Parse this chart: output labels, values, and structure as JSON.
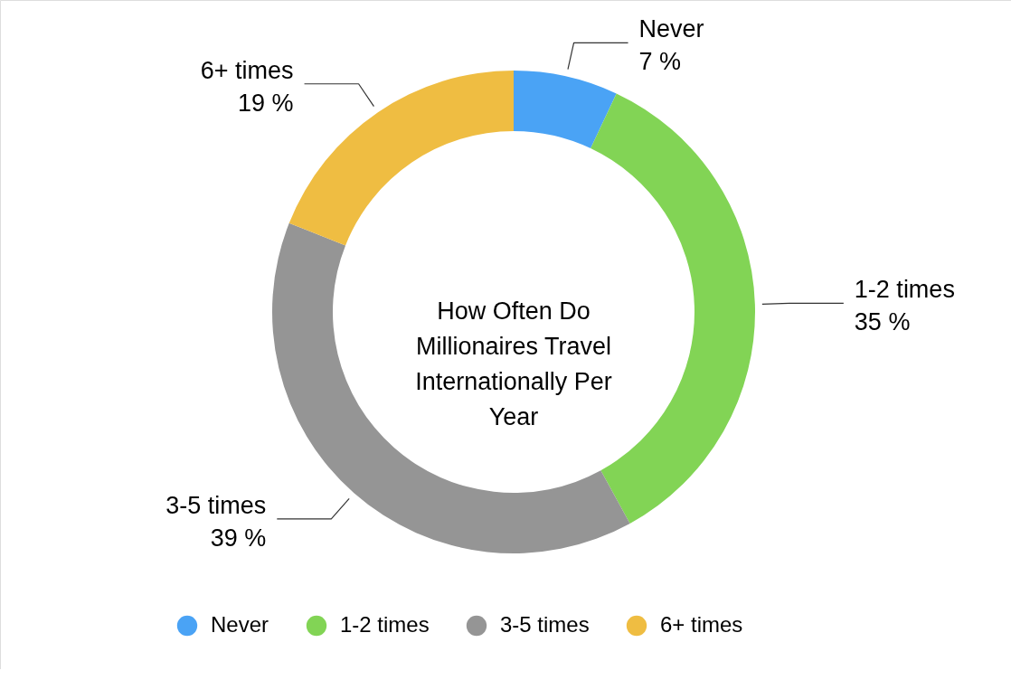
{
  "chart_data": {
    "type": "donut",
    "title": "How Often Do Millionaires Travel Internationally Per Year",
    "categories": [
      "Never",
      "1-2 times",
      "3-5 times",
      "6+ times"
    ],
    "values": [
      7,
      35,
      39,
      19
    ],
    "value_labels": [
      "7 %",
      "35 %",
      "39 %",
      "19 %"
    ],
    "colors": [
      "#4aa3f5",
      "#82d455",
      "#959595",
      "#efbd42"
    ],
    "legend": "bottom"
  }
}
